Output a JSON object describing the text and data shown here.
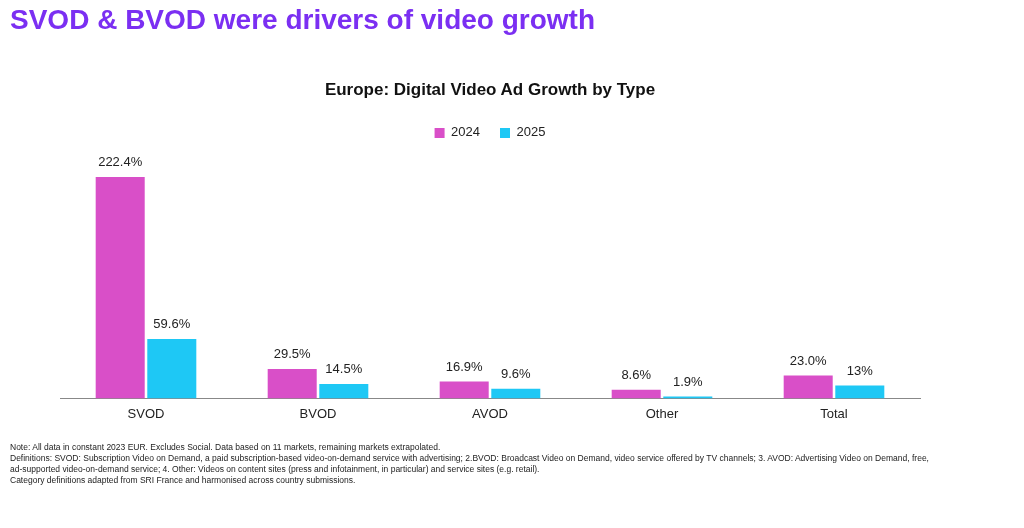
{
  "chart_data": {
    "type": "bar",
    "title": "SVOD & BVOD were drivers of video growth",
    "subtitle": "Europe: Digital Video Ad Growth by Type",
    "categories": [
      "SVOD",
      "BVOD",
      "AVOD",
      "Other",
      "Total"
    ],
    "series": [
      {
        "name": "2024",
        "color": "#d94fc8",
        "values": [
          222.4,
          29.5,
          16.9,
          8.6,
          23.0
        ],
        "value_labels": [
          "222.4%",
          "29.5%",
          "16.9%",
          "8.6%",
          "23.0%"
        ]
      },
      {
        "name": "2025",
        "color": "#1ec8f5",
        "values": [
          59.6,
          14.5,
          9.6,
          1.9,
          13
        ],
        "value_labels": [
          "59.6%",
          "14.5%",
          "9.6%",
          "1.9%",
          "13%"
        ]
      }
    ],
    "legend": "top",
    "grid": false,
    "annotations": [
      "Note: All data in constant 2023 EUR. Excludes Social. Data based on 11 markets, remaining markets extrapolated.",
      "Definitions: SVOD: Subscription Video on Demand, a paid subscription-based video-on-demand service with advertising; 2.BVOD: Broadcast Video on Demand, video service offered by TV channels; 3. AVOD: Advertising Video on Demand, free, ad-supported video-on-demand service; 4. Other: Videos  on content sites (press and infotainment, in particular) and service sites (e.g. retail).",
      "Category definitions adapted from SRI France and harmonised across country submissions."
    ]
  }
}
